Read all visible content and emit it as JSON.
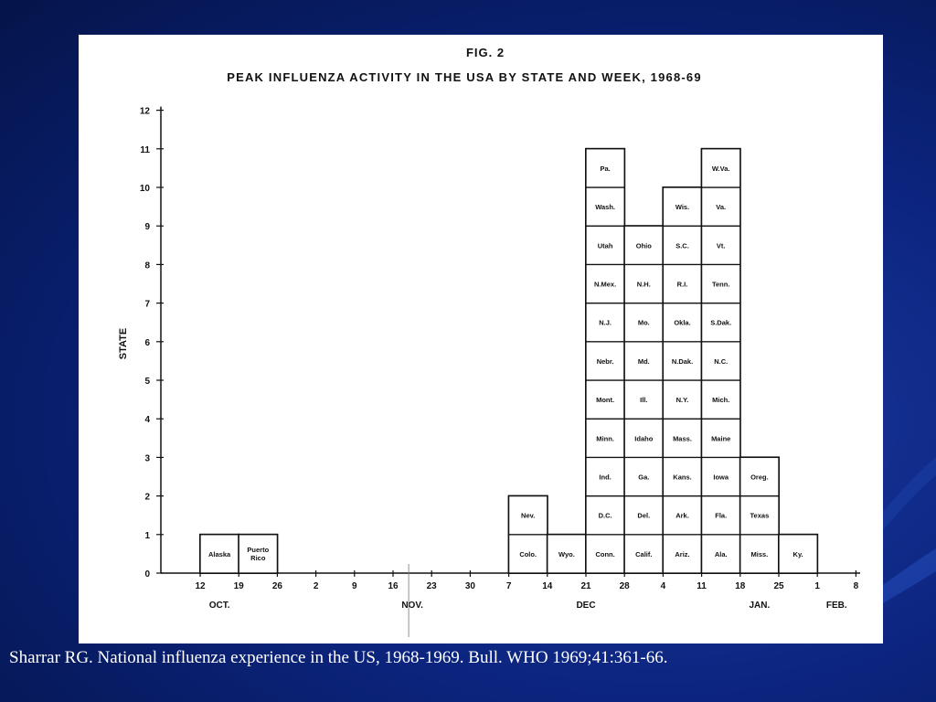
{
  "slide": {
    "caption": "Sharrar RG.  National influenza experience in the US, 1968-1969.  Bull. WHO 1969;41:361-66."
  },
  "chart_data": {
    "type": "bar",
    "fig_label": "FIG. 2",
    "title": "PEAK INFLUENZA ACTIVITY IN THE USA BY STATE AND WEEK, 1968-69",
    "xlabel": "",
    "ylabel": "STATE",
    "ylim": [
      0,
      12
    ],
    "y_ticks": [
      "0",
      "1",
      "2",
      "3",
      "4",
      "5",
      "6",
      "7",
      "8",
      "9",
      "10",
      "11",
      "12"
    ],
    "x_ticks": [
      "12",
      "19",
      "26",
      "2",
      "9",
      "16",
      "23",
      "30",
      "7",
      "14",
      "21",
      "28",
      "4",
      "11",
      "18",
      "25",
      "1",
      "8"
    ],
    "months": [
      {
        "label": "OCT.",
        "week_index": 0.5
      },
      {
        "label": "NOV.",
        "week_index": 5.5
      },
      {
        "label": "DEC",
        "week_index": 10
      },
      {
        "label": "JAN.",
        "week_index": 14.5
      },
      {
        "label": "FEB.",
        "week_index": 16.5
      }
    ],
    "week_columns": [
      {
        "start": 0,
        "states": [
          "Alaska"
        ]
      },
      {
        "start": 1,
        "states": [
          "Puerto Rico"
        ]
      },
      {
        "start": 8,
        "states": [
          "Colo.",
          "Nev."
        ]
      },
      {
        "start": 9,
        "states": [
          "Wyo."
        ]
      },
      {
        "start": 10,
        "states": [
          "Conn.",
          "D.C.",
          "Ind.",
          "Minn.",
          "Mont.",
          "Nebr.",
          "N.J.",
          "N.Mex.",
          "Utah",
          "Wash.",
          "Pa."
        ]
      },
      {
        "start": 11,
        "states": [
          "Calif.",
          "Del.",
          "Ga.",
          "Idaho",
          "Ill.",
          "Md.",
          "Mo.",
          "N.H.",
          "Ohio"
        ]
      },
      {
        "start": 12,
        "states": [
          "Ariz.",
          "Ark.",
          "Kans.",
          "Mass.",
          "N.Y.",
          "N.Dak.",
          "Okla.",
          "R.I.",
          "S.C.",
          "Wis."
        ]
      },
      {
        "start": 13,
        "states": [
          "Ala.",
          "Fla.",
          "Iowa",
          "Maine",
          "Mich.",
          "N.C.",
          "S.Dak.",
          "Tenn.",
          "Vt.",
          "Va.",
          "W.Va."
        ]
      },
      {
        "start": 14,
        "states": [
          "Miss.",
          "Texas",
          "Oreg."
        ]
      },
      {
        "start": 15,
        "states": [
          "Ky."
        ]
      }
    ],
    "values": [
      1,
      1,
      0,
      0,
      0,
      0,
      0,
      0,
      2,
      1,
      11,
      9,
      10,
      11,
      3,
      1,
      0
    ]
  }
}
